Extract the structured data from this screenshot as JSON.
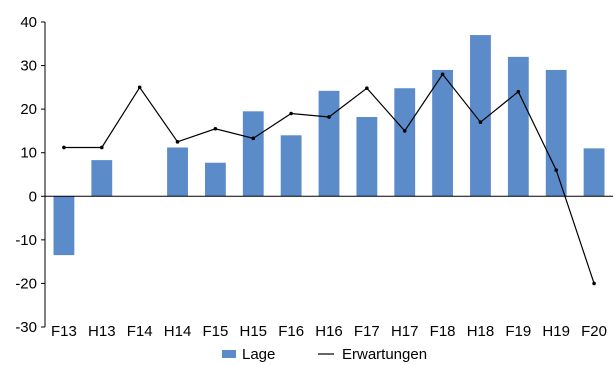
{
  "chart_data": {
    "type": "bar",
    "categories": [
      "F13",
      "H13",
      "F14",
      "H14",
      "F15",
      "H15",
      "F16",
      "H16",
      "F17",
      "H17",
      "F18",
      "H18",
      "F19",
      "H19",
      "F20"
    ],
    "ylim": [
      -30,
      40
    ],
    "yticks": [
      40,
      30,
      20,
      10,
      0,
      -10,
      -20,
      -30
    ],
    "series": [
      {
        "name": "Lage",
        "kind": "bar",
        "color": "#5b8bc9",
        "values": [
          -13.5,
          8.3,
          0,
          11.2,
          7.7,
          19.5,
          14.0,
          24.2,
          18.2,
          24.8,
          29.0,
          37.0,
          32.0,
          29.0,
          11.0
        ]
      },
      {
        "name": "Erwartungen",
        "kind": "line",
        "color": "#000000",
        "values": [
          11.2,
          11.2,
          25.0,
          12.5,
          15.5,
          13.3,
          19.0,
          18.2,
          24.8,
          15.0,
          28.0,
          17.0,
          24.0,
          6.0,
          -20.0
        ]
      }
    ],
    "legend_position": "bottom",
    "grid": false
  }
}
